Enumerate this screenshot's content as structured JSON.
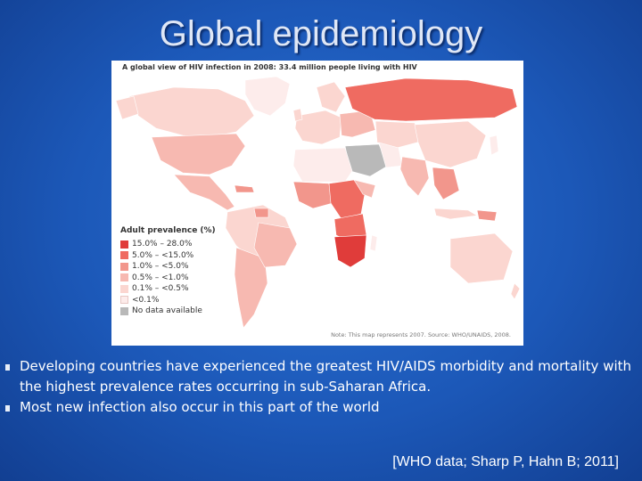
{
  "slide": {
    "title": "Global epidemiology",
    "citation": "[WHO data; Sharp P, Hahn B; 2011]"
  },
  "map": {
    "title": "A global view of HIV infection in 2008: 33.4 million people living with HIV",
    "legend_title": "Adult prevalence (%)",
    "legend": [
      {
        "label": "15.0% – 28.0%",
        "color": "#e03c3a"
      },
      {
        "label": "5.0% – <15.0%",
        "color": "#ef6b61"
      },
      {
        "label": "1.0% – <5.0%",
        "color": "#f2968c"
      },
      {
        "label": "0.5% – <1.0%",
        "color": "#f7b9b1"
      },
      {
        "label": "0.1% – <0.5%",
        "color": "#fbd6d0"
      },
      {
        "label": "<0.1%",
        "color": "#fdeceb"
      },
      {
        "label": "No data available",
        "color": "#b9b9b9"
      }
    ],
    "note": "Note: This map represents 2007. Source: WHO/UNAIDS, 2008."
  },
  "bullets": [
    "Developing countries have experienced the greatest HIV/AIDS morbidity and mortality with the highest prevalence rates occurring in sub-Saharan Africa.",
    "Most new infection also occur in this part of the world"
  ]
}
